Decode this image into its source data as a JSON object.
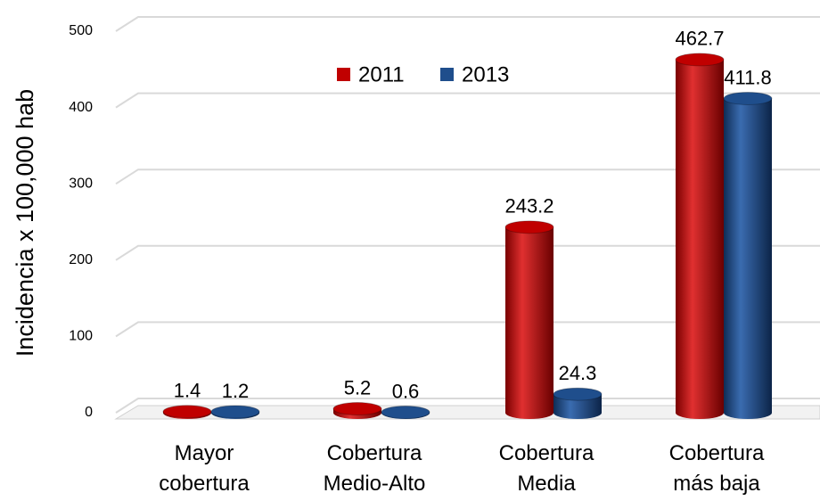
{
  "chart_data": {
    "type": "bar",
    "y_label": "Incidencia x 100,000 hab",
    "categories": [
      "Mayor cobertura",
      "Cobertura Medio-Alto",
      "Cobertura Media",
      "Cobertura más baja"
    ],
    "series": [
      {
        "name": "2011",
        "color": "#c00000",
        "values": [
          1.4,
          5.2,
          243.2,
          462.7
        ]
      },
      {
        "name": "2013",
        "color": "#1f4e8c",
        "values": [
          1.2,
          0.6,
          24.3,
          411.8
        ]
      }
    ],
    "ylim": [
      0,
      500
    ],
    "yticks": [
      0,
      100,
      200,
      300,
      400,
      500
    ],
    "grid": true,
    "legend": "top"
  }
}
